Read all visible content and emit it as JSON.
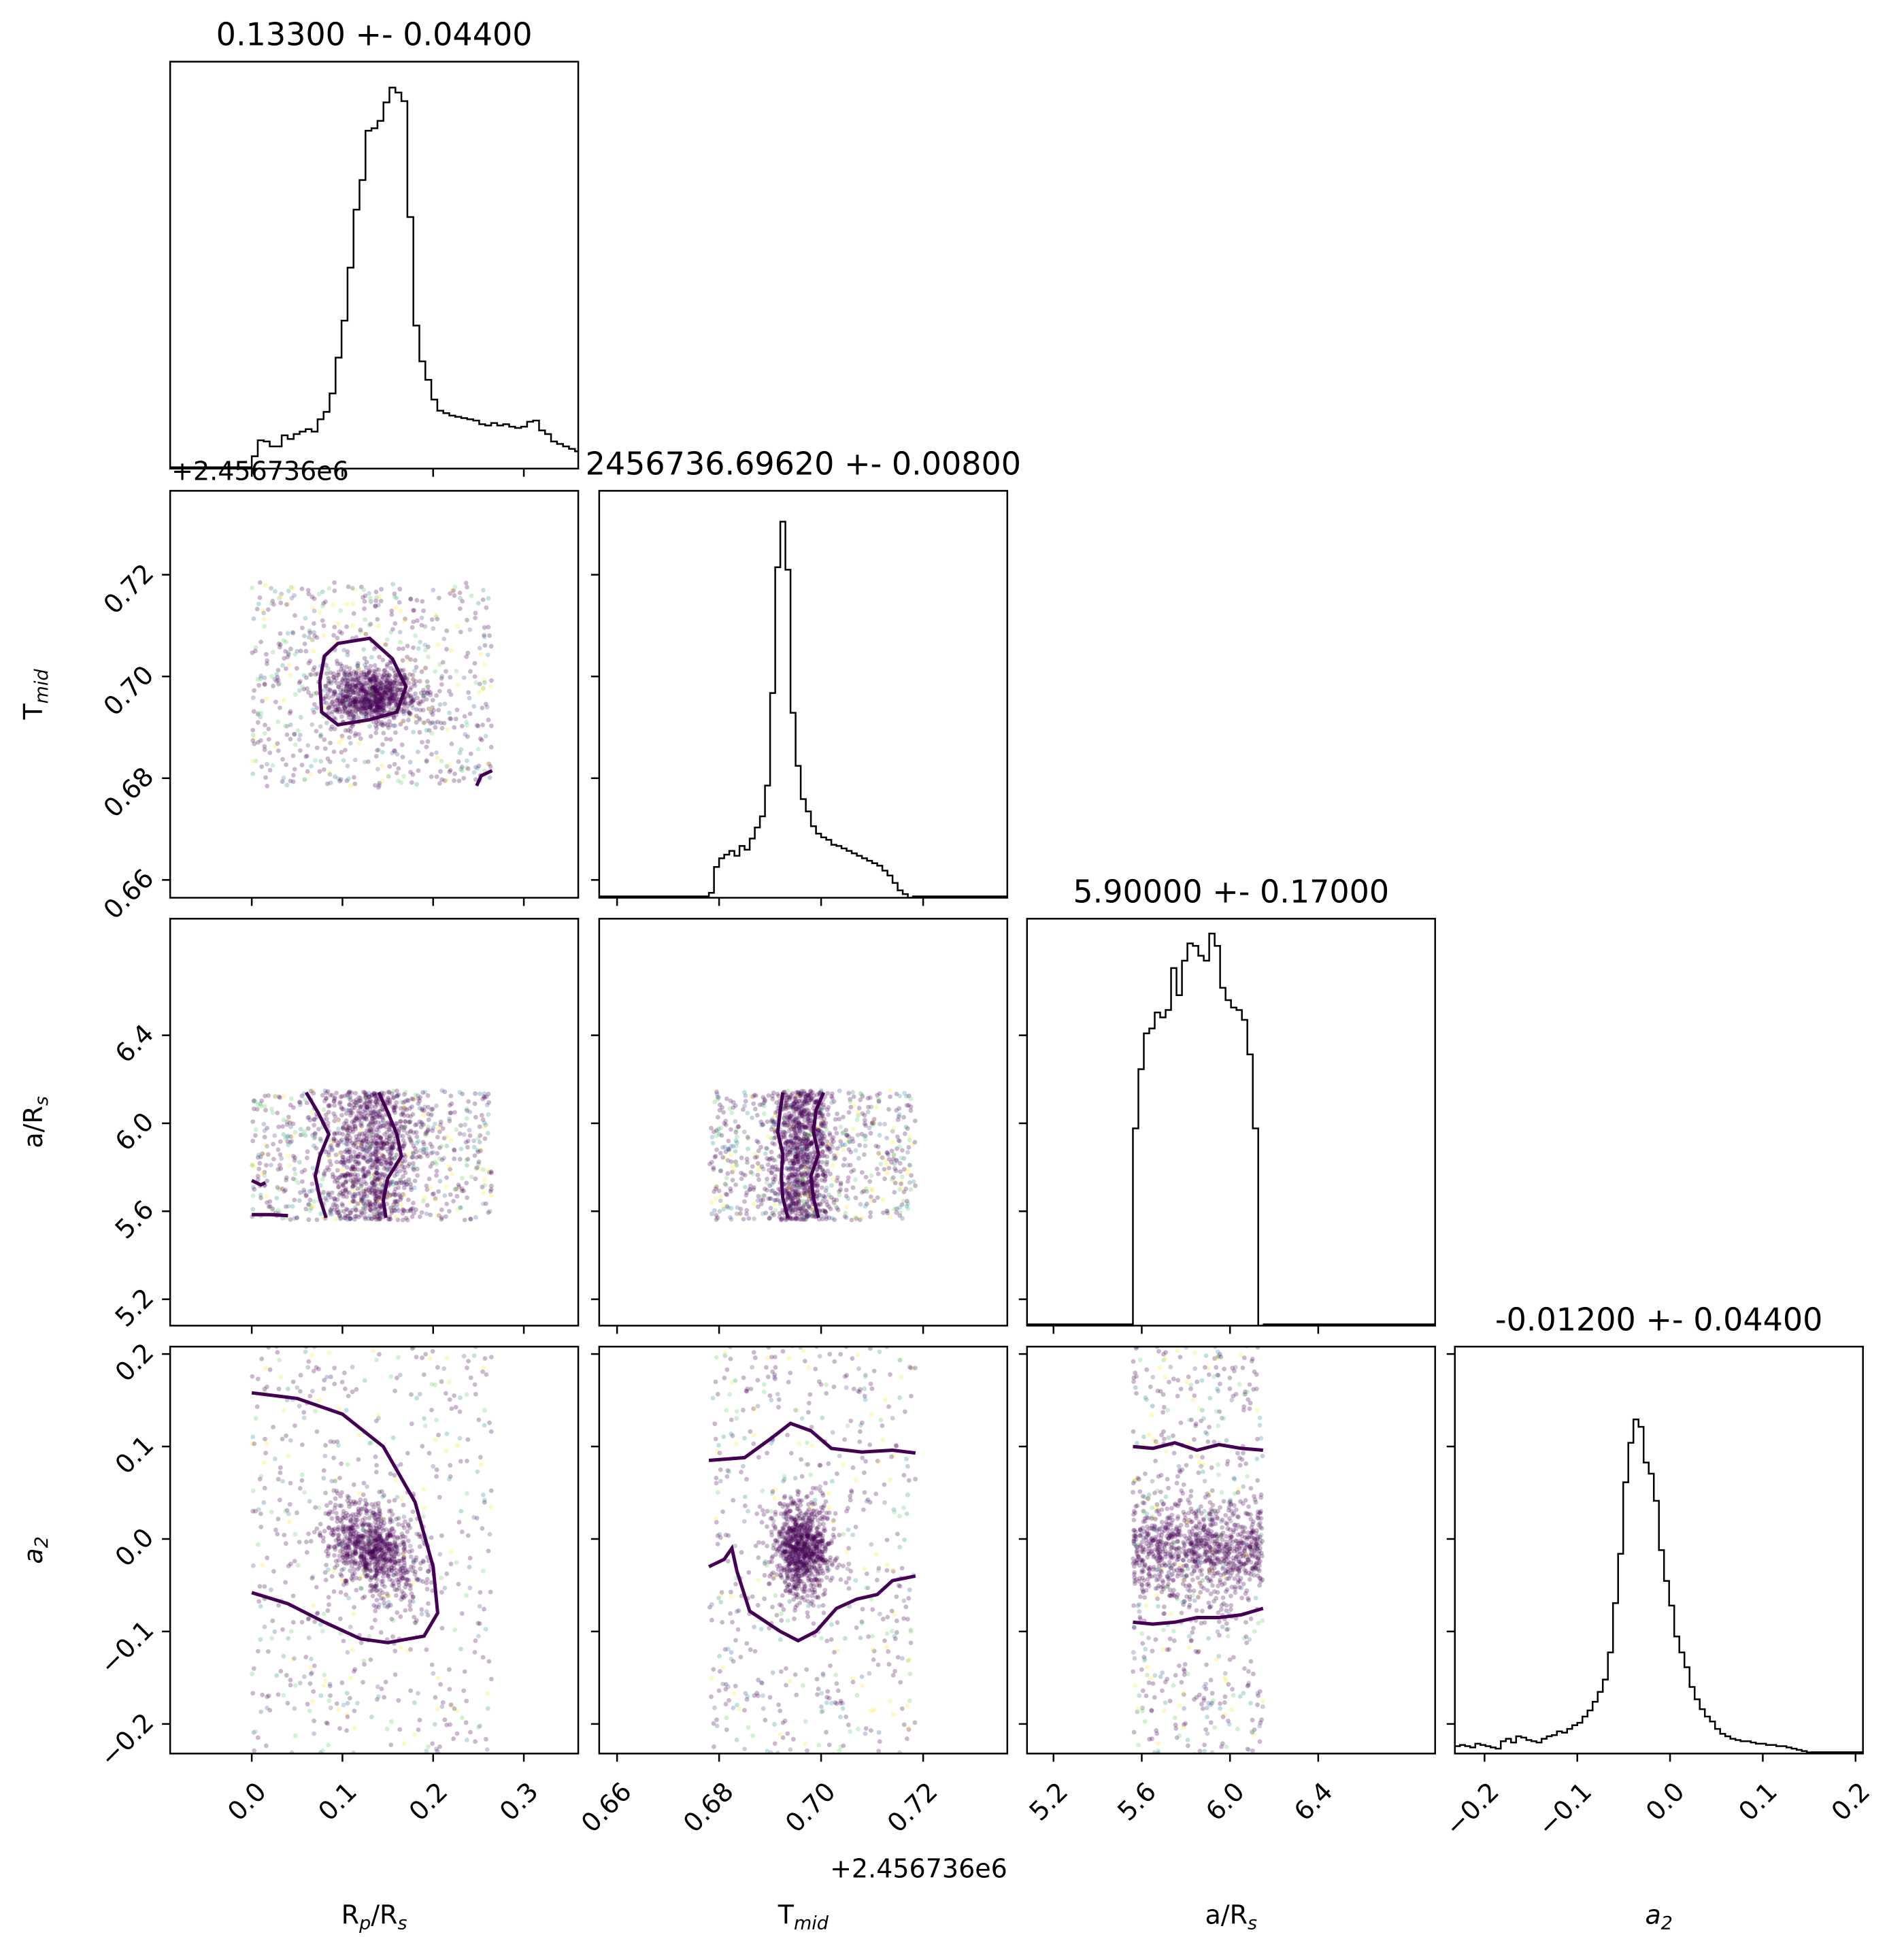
{
  "chart_data": {
    "type": "scatter",
    "parameters": [
      {
        "key": "rp",
        "title": "0.13300 +- 0.04400",
        "range": [
          -0.09,
          0.36
        ],
        "ticks": [
          0.0,
          0.1,
          0.2,
          0.3
        ],
        "tick_labels": [
          "0.0",
          "0.1",
          "0.2",
          "0.3"
        ],
        "prior": [
          0.0,
          0.265
        ]
      },
      {
        "key": "tmid",
        "title": "2456736.69620 +- 0.00800",
        "range": [
          0.6565,
          0.7365
        ],
        "ticks": [
          0.66,
          0.68,
          0.7,
          0.72
        ],
        "tick_labels": [
          "0.66",
          "0.68",
          "0.70",
          "0.72"
        ],
        "offset": "+2.456736e6",
        "prior": [
          0.678,
          0.7185
        ]
      },
      {
        "key": "ars",
        "title": "5.90000 +- 0.17000",
        "range": [
          5.08,
          6.93
        ],
        "ticks": [
          5.2,
          5.6,
          6.0,
          6.4
        ],
        "tick_labels": [
          "5.2",
          "5.6",
          "6.0",
          "6.4"
        ],
        "prior": [
          5.56,
          6.15
        ]
      },
      {
        "key": "a2",
        "title": "-0.01200 +- 0.04400",
        "range": [
          -0.232,
          0.208
        ],
        "ticks": [
          -0.2,
          -0.1,
          0.0,
          0.1,
          0.2
        ],
        "tick_labels": [
          "−0.2",
          "−0.1",
          "0.0",
          "0.1",
          "0.2"
        ],
        "prior": [
          -0.25,
          0.25
        ]
      }
    ],
    "axis_labels": {
      "x": [
        "Rp/Rs",
        "Tmid",
        "a/Rs",
        "a2"
      ],
      "y": [
        "",
        "Tmid",
        "a/Rs",
        "a2"
      ]
    },
    "posterior": {
      "rp": {
        "mean": 0.133,
        "sd": 0.044
      },
      "tmid": {
        "mean": 0.6962,
        "sd": 0.008
      },
      "ars": {
        "mean": 5.9,
        "sd": 0.17
      },
      "a2": {
        "mean": -0.012,
        "sd": 0.044
      }
    },
    "histograms": {
      "rp": {
        "edges_start": 0.0,
        "bin_width": 0.0066,
        "counts": [
          10,
          23,
          22,
          18,
          18,
          27,
          24,
          28,
          30,
          32,
          30,
          40,
          46,
          61,
          90,
          120,
          163,
          210,
          234,
          274,
          276,
          282,
          297,
          309,
          305,
          298,
          204,
          116,
          87,
          72,
          56,
          47,
          45,
          43,
          42,
          41,
          40,
          39,
          36,
          35,
          37,
          35,
          36,
          34,
          33,
          34,
          38,
          39,
          31,
          28,
          22,
          20,
          18,
          16,
          14,
          12,
          10,
          8,
          6,
          4,
          2,
          1,
          0,
          0,
          0,
          0,
          0,
          0,
          0,
          0
        ],
        "ylim": [
          0,
          330
        ]
      },
      "tmid": {
        "edges_start": 0.678,
        "bin_width": 0.001,
        "counts": [
          4,
          25,
          32,
          35,
          38,
          34,
          42,
          39,
          48,
          57,
          66,
          91,
          166,
          268,
          305,
          266,
          150,
          107,
          80,
          70,
          58,
          52,
          49,
          47,
          43,
          42,
          40,
          38,
          36,
          34,
          32,
          30,
          28,
          26,
          22,
          18,
          12,
          6,
          3,
          0
        ],
        "ylim": [
          0,
          330
        ]
      },
      "ars": {
        "edges_start": 5.56,
        "bin_width": 0.0247,
        "counts": [
          160,
          208,
          237,
          241,
          254,
          250,
          256,
          290,
          268,
          296,
          310,
          308,
          300,
          296,
          318,
          308,
          274,
          264,
          258,
          256,
          248,
          220,
          160,
          0
        ],
        "ylim": [
          0,
          330
        ]
      },
      "a2": {
        "edges_start": -0.232,
        "bin_width": 0.0055,
        "counts": [
          6,
          7,
          6,
          5,
          8,
          7,
          6,
          5,
          4,
          10,
          12,
          9,
          14,
          13,
          11,
          10,
          9,
          12,
          14,
          15,
          18,
          17,
          20,
          23,
          25,
          30,
          35,
          42,
          50,
          60,
          82,
          122,
          162,
          220,
          252,
          271,
          265,
          236,
          227,
          205,
          165,
          140,
          120,
          95,
          82,
          70,
          54,
          44,
          36,
          30,
          26,
          20,
          16,
          14,
          12,
          11,
          10,
          10,
          9,
          8,
          8,
          7,
          7,
          6,
          6,
          5,
          4,
          3,
          2,
          1
        ],
        "ylim": [
          0,
          330
        ]
      }
    },
    "contours": {
      "tmid_rp": [
        [
          0.075,
          0.699
        ],
        [
          0.08,
          0.704
        ],
        [
          0.095,
          0.7065
        ],
        [
          0.13,
          0.7075
        ],
        [
          0.155,
          0.7035
        ],
        [
          0.17,
          0.698
        ],
        [
          0.16,
          0.693
        ],
        [
          0.13,
          0.6915
        ],
        [
          0.095,
          0.6905
        ],
        [
          0.077,
          0.693
        ],
        [
          0.075,
          0.699
        ]
      ],
      "ars_rp": [
        [
          0.082,
          5.57
        ],
        [
          0.075,
          5.66
        ],
        [
          0.07,
          5.76
        ],
        [
          0.075,
          5.85
        ],
        [
          0.085,
          5.95
        ],
        [
          0.073,
          6.05
        ],
        [
          0.06,
          6.14
        ]
      ],
      "ars_rp_b": [
        [
          0.14,
          6.14
        ],
        [
          0.15,
          6.05
        ],
        [
          0.16,
          5.95
        ],
        [
          0.165,
          5.85
        ],
        [
          0.15,
          5.75
        ],
        [
          0.145,
          5.65
        ],
        [
          0.148,
          5.57
        ]
      ],
      "ars_rp_edge": [
        [
          0.0,
          5.74
        ],
        [
          0.01,
          5.72
        ],
        [
          0.015,
          5.73
        ]
      ],
      "ars_rp_edge2": [
        [
          0.0,
          5.585
        ],
        [
          0.02,
          5.585
        ],
        [
          0.04,
          5.58
        ]
      ],
      "a2_rp": [
        [
          0.0,
          0.158
        ],
        [
          0.05,
          0.152
        ],
        [
          0.1,
          0.135
        ],
        [
          0.145,
          0.1
        ],
        [
          0.18,
          0.04
        ],
        [
          0.2,
          -0.03
        ],
        [
          0.205,
          -0.08
        ],
        [
          0.19,
          -0.105
        ],
        [
          0.15,
          -0.112
        ],
        [
          0.12,
          -0.108
        ],
        [
          0.08,
          -0.09
        ],
        [
          0.04,
          -0.07
        ],
        [
          0.0,
          -0.058
        ]
      ],
      "ars_tmid_a": [
        [
          0.6925,
          6.14
        ],
        [
          0.692,
          6.06
        ],
        [
          0.6915,
          5.96
        ],
        [
          0.6925,
          5.86
        ],
        [
          0.6922,
          5.76
        ],
        [
          0.6925,
          5.66
        ],
        [
          0.6935,
          5.57
        ]
      ],
      "ars_tmid_b": [
        [
          0.7005,
          6.14
        ],
        [
          0.699,
          6.06
        ],
        [
          0.6985,
          5.96
        ],
        [
          0.6995,
          5.86
        ],
        [
          0.698,
          5.76
        ],
        [
          0.6985,
          5.66
        ],
        [
          0.6995,
          5.57
        ]
      ],
      "a2_tmid_top": [
        [
          0.678,
          0.085
        ],
        [
          0.685,
          0.088
        ],
        [
          0.69,
          0.108
        ],
        [
          0.694,
          0.125
        ],
        [
          0.698,
          0.117
        ],
        [
          0.702,
          0.098
        ],
        [
          0.708,
          0.094
        ],
        [
          0.714,
          0.096
        ],
        [
          0.7185,
          0.093
        ]
      ],
      "a2_tmid_bot": [
        [
          0.678,
          -0.03
        ],
        [
          0.681,
          -0.022
        ],
        [
          0.6825,
          -0.01
        ],
        [
          0.6835,
          -0.035
        ],
        [
          0.686,
          -0.078
        ],
        [
          0.692,
          -0.1
        ],
        [
          0.6955,
          -0.11
        ],
        [
          0.699,
          -0.1
        ],
        [
          0.703,
          -0.075
        ],
        [
          0.707,
          -0.065
        ],
        [
          0.711,
          -0.06
        ],
        [
          0.714,
          -0.045
        ],
        [
          0.7185,
          -0.04
        ]
      ],
      "a2_ars_top": [
        [
          5.56,
          0.1
        ],
        [
          5.65,
          0.098
        ],
        [
          5.75,
          0.104
        ],
        [
          5.85,
          0.096
        ],
        [
          5.95,
          0.102
        ],
        [
          6.05,
          0.098
        ],
        [
          6.15,
          0.096
        ]
      ],
      "a2_ars_bot": [
        [
          5.56,
          -0.09
        ],
        [
          5.65,
          -0.092
        ],
        [
          5.75,
          -0.09
        ],
        [
          5.85,
          -0.085
        ],
        [
          5.95,
          -0.085
        ],
        [
          6.05,
          -0.082
        ],
        [
          6.15,
          -0.075
        ]
      ],
      "tmid_rp_corner": [
        [
          0.248,
          0.6785
        ],
        [
          0.253,
          0.6805
        ],
        [
          0.265,
          0.6815
        ]
      ]
    },
    "colors": {
      "contour": "#440154",
      "histogram": "#000000",
      "scatter": [
        "#440154",
        "#3b528b",
        "#21918c",
        "#5ec962",
        "#fde725"
      ],
      "corner_contour": "#21918c"
    },
    "grid": false,
    "legend": "none"
  }
}
